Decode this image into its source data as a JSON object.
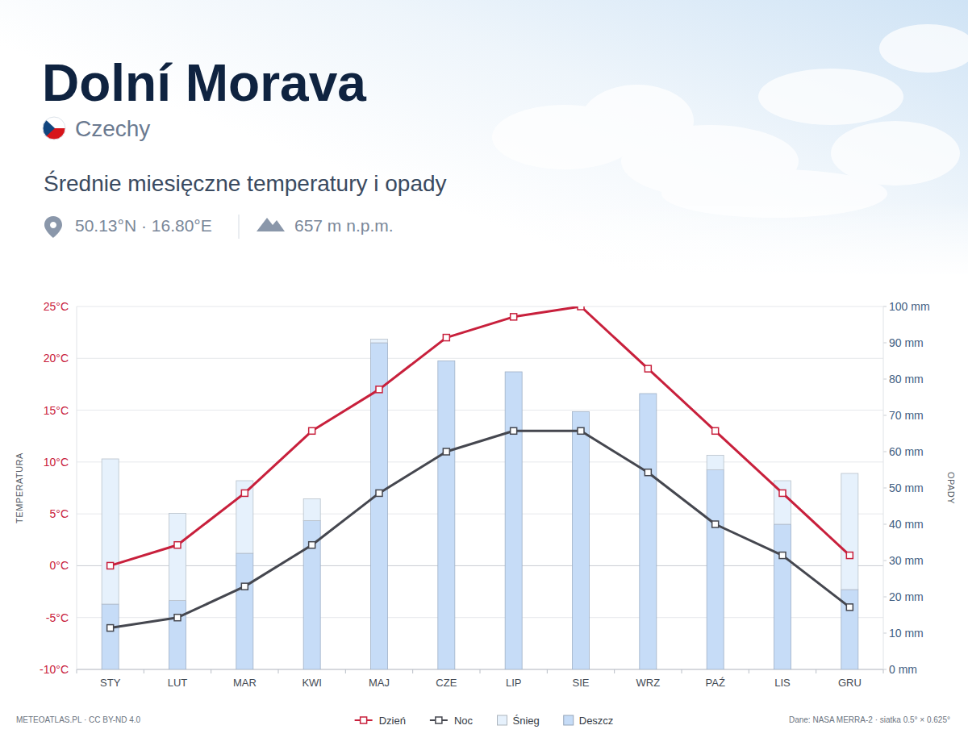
{
  "chart_data": {
    "type": "bar",
    "title": "Dolní Morava",
    "subtitle": "Czechy",
    "annotations": [
      "Średnie miesięczne temperatury i opady",
      "50.13°N · 16.80°E",
      "657 m n.p.m.",
      "METEOATLAS.PL · CC BY-ND 4.0",
      "Dane: NASA MERRA-2 · siatka 0.5° × 0.625°"
    ],
    "ylabel": "TEMPERATURA",
    "y2label": "OPADY",
    "categories": [
      "STY",
      "LUT",
      "MAR",
      "KWI",
      "MAJ",
      "CZE",
      "LIP",
      "SIE",
      "WRZ",
      "PAŹ",
      "LIS",
      "GRU"
    ],
    "series": [
      {
        "name": "Dzień",
        "type": "line",
        "color": "#c8203c",
        "marker": "square",
        "values": [
          0,
          2,
          7,
          13,
          17,
          22,
          24,
          25,
          19,
          13,
          7,
          1
        ]
      },
      {
        "name": "Noc",
        "type": "line",
        "color": "#45474f",
        "marker": "square",
        "values": [
          -6,
          -5,
          -2,
          2,
          7,
          11,
          13,
          13,
          9,
          4,
          1,
          -4
        ]
      },
      {
        "name": "Śnieg",
        "type": "bar",
        "axis": "y2",
        "color": "#e6f1fc",
        "values": [
          40,
          24,
          20,
          6,
          1,
          0,
          0,
          0,
          0,
          4,
          12,
          32
        ]
      },
      {
        "name": "Deszcz",
        "type": "bar",
        "axis": "y2",
        "color": "#c6dcf7",
        "values": [
          18,
          19,
          32,
          41,
          90,
          85,
          82,
          71,
          76,
          55,
          40,
          22
        ]
      }
    ],
    "stacked": true,
    "ylim": [
      -10,
      25
    ],
    "yticks": [
      {
        "value": -10,
        "label": "-10°C"
      },
      {
        "value": -5,
        "label": "-5°C"
      },
      {
        "value": 0,
        "label": "0°C"
      },
      {
        "value": 5,
        "label": "5°C"
      },
      {
        "value": 10,
        "label": "10°C"
      },
      {
        "value": 15,
        "label": "15°C"
      },
      {
        "value": 20,
        "label": "20°C"
      },
      {
        "value": 25,
        "label": "25°C"
      }
    ],
    "y2lim": [
      0,
      100
    ],
    "y2ticks": [
      {
        "value": 0,
        "label": "0 mm"
      },
      {
        "value": 10,
        "label": "10 mm"
      },
      {
        "value": 20,
        "label": "20 mm"
      },
      {
        "value": 30,
        "label": "30 mm"
      },
      {
        "value": 40,
        "label": "40 mm"
      },
      {
        "value": 50,
        "label": "50 mm"
      },
      {
        "value": 60,
        "label": "60 mm"
      },
      {
        "value": 70,
        "label": "70 mm"
      },
      {
        "value": 80,
        "label": "80 mm"
      },
      {
        "value": 90,
        "label": "90 mm"
      },
      {
        "value": 100,
        "label": "100 mm"
      }
    ],
    "grid": true,
    "legend": "bottom"
  }
}
